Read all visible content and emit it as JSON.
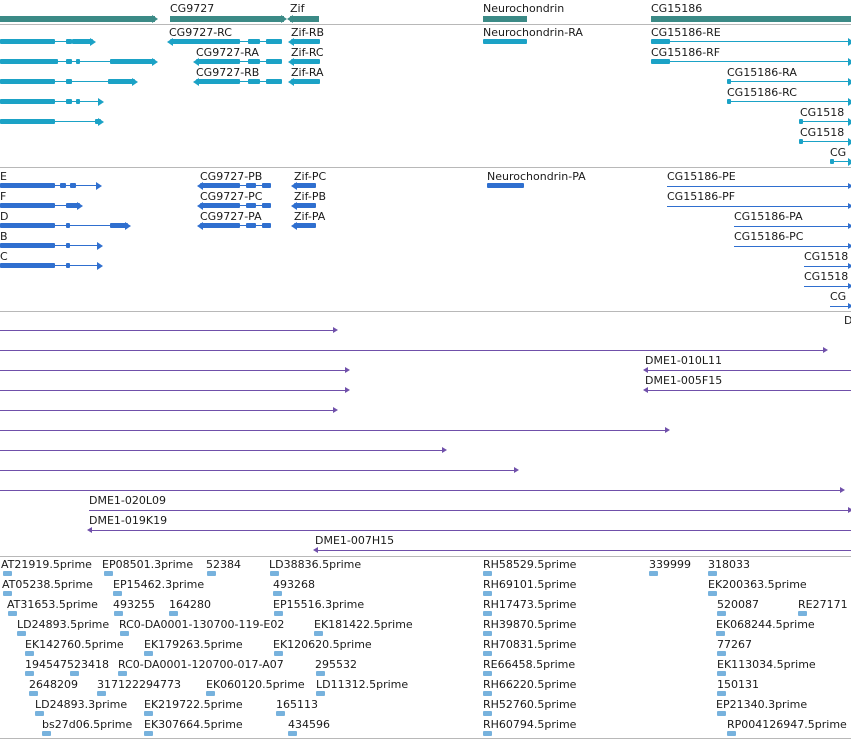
{
  "colors": {
    "gene": "#3b8a86",
    "transcript": "#1ba2c6",
    "protein": "#2f6fcf",
    "clone": "#7050aa",
    "est": "#77b2dd",
    "separator": "#b8b8b8"
  },
  "tracks": {
    "genes": {
      "labels": [
        "CG9727",
        "Zif",
        "Neurochondrin",
        "CG15186"
      ]
    },
    "transcripts": {
      "labels": [
        "CG9727-RC",
        "CG9727-RA",
        "CG9727-RB",
        "Zif-RB",
        "Zif-RC",
        "Zif-RA",
        "Neurochondrin-RA",
        "CG15186-RE",
        "CG15186-RF",
        "CG15186-RA",
        "CG15186-RC",
        "CG1518",
        "CG1518",
        "CG"
      ]
    },
    "proteins": {
      "labels": [
        "E",
        "F",
        "D",
        "B",
        "C",
        "CG9727-PB",
        "CG9727-PC",
        "CG9727-PA",
        "Zif-PC",
        "Zif-PB",
        "Zif-PA",
        "Neurochondrin-PA",
        "CG15186-PE",
        "CG15186-PF",
        "CG15186-PA",
        "CG15186-PC",
        "CG1518",
        "CG1518",
        "CG"
      ]
    },
    "clones": {
      "labels": [
        "D",
        "DME1-010L11",
        "DME1-005F15",
        "DME1-020L09",
        "DME1-019K19",
        "DME1-007H15"
      ]
    },
    "ests": {
      "labels": [
        "AT21919.5prime",
        "EP08501.3prime",
        "52384",
        "LD38836.5prime",
        "RH58529.5prime",
        "339999",
        "318033",
        "AT05238.5prime",
        "EP15462.3prime",
        "493268",
        "RH69101.5prime",
        "EK200363.5prime",
        "AT31653.5prime",
        "493255",
        "164280",
        "EP15516.3prime",
        "RH17473.5prime",
        "520087",
        "RE27171",
        "LD24893.5prime",
        "RC0-DA0001-130700-119-E02",
        "EK181422.5prime",
        "RH39870.5prime",
        "EK068244.5prime",
        "EK142760.5prime",
        "EK179263.5prime",
        "EK120620.5prime",
        "RH70831.5prime",
        "77267",
        "194547523418",
        "RC0-DA0001-120700-017-A07",
        "295532",
        "RE66458.5prime",
        "EK113034.5prime",
        "2648209",
        "317122294773",
        "EK060120.5prime",
        "LD11312.5prime",
        "RH66220.5prime",
        "150131",
        "LD24893.3prime",
        "EK219722.5prime",
        "165113",
        "RH52760.5prime",
        "EP21340.3prime",
        "bs27d06.5prime",
        "EK307664.5prime",
        "434596",
        "RH60794.5prime",
        "RP004126947.5prime"
      ]
    }
  }
}
